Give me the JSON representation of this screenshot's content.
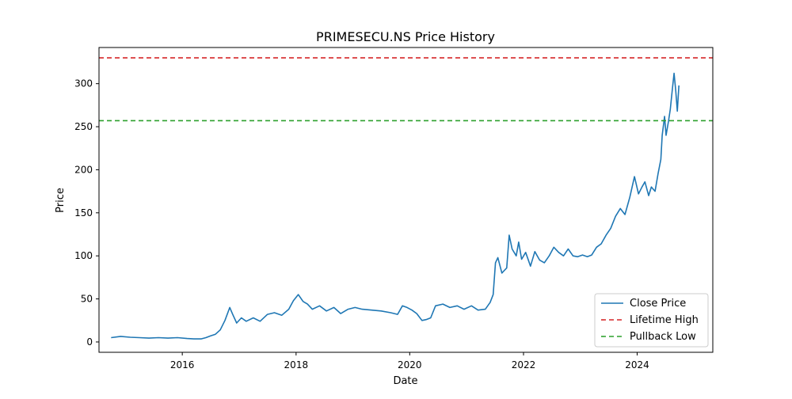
{
  "chart_data": {
    "type": "line",
    "title": "PRIMESECU.NS Price History",
    "xlabel": "Date",
    "ylabel": "Price",
    "xlim": [
      "2014-07-15",
      "2025-05-01"
    ],
    "ylim": [
      -12,
      342
    ],
    "x_ticks": [
      "2016",
      "2018",
      "2020",
      "2022",
      "2024"
    ],
    "y_ticks": [
      0,
      50,
      100,
      150,
      200,
      250,
      300
    ],
    "grid": false,
    "legend_position": "lower right",
    "series": [
      {
        "name": "Close Price",
        "kind": "line",
        "color": "#1f77b4",
        "points": [
          [
            "2014-10-01",
            5
          ],
          [
            "2014-12-01",
            6.5
          ],
          [
            "2015-02-01",
            5.5
          ],
          [
            "2015-04-01",
            5
          ],
          [
            "2015-06-01",
            4.5
          ],
          [
            "2015-08-01",
            5
          ],
          [
            "2015-10-01",
            4.5
          ],
          [
            "2015-12-01",
            5
          ],
          [
            "2016-02-01",
            4
          ],
          [
            "2016-03-15",
            3.5
          ],
          [
            "2016-05-01",
            3.5
          ],
          [
            "2016-06-01",
            5
          ],
          [
            "2016-07-01",
            7
          ],
          [
            "2016-08-01",
            9
          ],
          [
            "2016-09-01",
            14
          ],
          [
            "2016-10-01",
            25
          ],
          [
            "2016-11-01",
            40
          ],
          [
            "2016-11-20",
            32
          ],
          [
            "2016-12-15",
            22
          ],
          [
            "2017-01-15",
            28
          ],
          [
            "2017-02-15",
            24
          ],
          [
            "2017-04-01",
            28
          ],
          [
            "2017-05-15",
            24
          ],
          [
            "2017-07-01",
            32
          ],
          [
            "2017-08-15",
            34
          ],
          [
            "2017-10-01",
            31
          ],
          [
            "2017-11-15",
            38
          ],
          [
            "2017-12-15",
            48
          ],
          [
            "2018-01-15",
            55
          ],
          [
            "2018-02-15",
            47
          ],
          [
            "2018-03-15",
            44
          ],
          [
            "2018-04-15",
            38
          ],
          [
            "2018-06-01",
            42
          ],
          [
            "2018-07-15",
            36
          ],
          [
            "2018-09-01",
            40
          ],
          [
            "2018-10-15",
            33
          ],
          [
            "2018-12-01",
            38
          ],
          [
            "2019-01-15",
            40
          ],
          [
            "2019-03-01",
            38
          ],
          [
            "2019-05-01",
            37
          ],
          [
            "2019-07-01",
            36
          ],
          [
            "2019-09-01",
            34
          ],
          [
            "2019-10-15",
            32
          ],
          [
            "2019-11-15",
            42
          ],
          [
            "2019-12-15",
            40
          ],
          [
            "2020-01-15",
            37
          ],
          [
            "2020-02-15",
            33
          ],
          [
            "2020-03-20",
            25
          ],
          [
            "2020-04-15",
            26
          ],
          [
            "2020-05-15",
            28
          ],
          [
            "2020-06-15",
            42
          ],
          [
            "2020-08-01",
            44
          ],
          [
            "2020-09-15",
            40
          ],
          [
            "2020-11-01",
            42
          ],
          [
            "2020-12-15",
            38
          ],
          [
            "2021-02-01",
            42
          ],
          [
            "2021-03-15",
            37
          ],
          [
            "2021-05-01",
            38
          ],
          [
            "2021-06-01",
            46
          ],
          [
            "2021-06-20",
            55
          ],
          [
            "2021-07-05",
            92
          ],
          [
            "2021-07-20",
            98
          ],
          [
            "2021-08-15",
            80
          ],
          [
            "2021-09-15",
            86
          ],
          [
            "2021-10-01",
            124
          ],
          [
            "2021-10-20",
            108
          ],
          [
            "2021-11-15",
            100
          ],
          [
            "2021-12-01",
            116
          ],
          [
            "2021-12-20",
            96
          ],
          [
            "2022-01-15",
            104
          ],
          [
            "2022-02-15",
            88
          ],
          [
            "2022-03-15",
            105
          ],
          [
            "2022-04-15",
            95
          ],
          [
            "2022-05-15",
            92
          ],
          [
            "2022-06-15",
            100
          ],
          [
            "2022-07-15",
            110
          ],
          [
            "2022-08-15",
            104
          ],
          [
            "2022-09-15",
            100
          ],
          [
            "2022-10-15",
            108
          ],
          [
            "2022-11-15",
            100
          ],
          [
            "2022-12-15",
            99
          ],
          [
            "2023-01-15",
            101
          ],
          [
            "2023-02-15",
            99
          ],
          [
            "2023-03-15",
            101
          ],
          [
            "2023-04-15",
            110
          ],
          [
            "2023-05-15",
            114
          ],
          [
            "2023-06-15",
            124
          ],
          [
            "2023-07-15",
            132
          ],
          [
            "2023-08-15",
            146
          ],
          [
            "2023-09-15",
            155
          ],
          [
            "2023-10-15",
            148
          ],
          [
            "2023-11-15",
            168
          ],
          [
            "2023-12-15",
            192
          ],
          [
            "2024-01-10",
            172
          ],
          [
            "2024-02-01",
            180
          ],
          [
            "2024-02-20",
            186
          ],
          [
            "2024-03-15",
            170
          ],
          [
            "2024-04-01",
            180
          ],
          [
            "2024-04-25",
            175
          ],
          [
            "2024-05-15",
            196
          ],
          [
            "2024-06-01",
            212
          ],
          [
            "2024-06-10",
            240
          ],
          [
            "2024-06-25",
            262
          ],
          [
            "2024-07-05",
            240
          ],
          [
            "2024-07-20",
            256
          ],
          [
            "2024-08-01",
            270
          ],
          [
            "2024-08-15",
            295
          ],
          [
            "2024-08-25",
            312
          ],
          [
            "2024-09-05",
            292
          ],
          [
            "2024-09-15",
            268
          ],
          [
            "2024-09-25",
            298
          ]
        ]
      },
      {
        "name": "Lifetime High",
        "kind": "hline",
        "y": 330,
        "color": "#d62728",
        "dash": true
      },
      {
        "name": "Pullback Low",
        "kind": "hline",
        "y": 257,
        "color": "#2ca02c",
        "dash": true
      }
    ]
  }
}
